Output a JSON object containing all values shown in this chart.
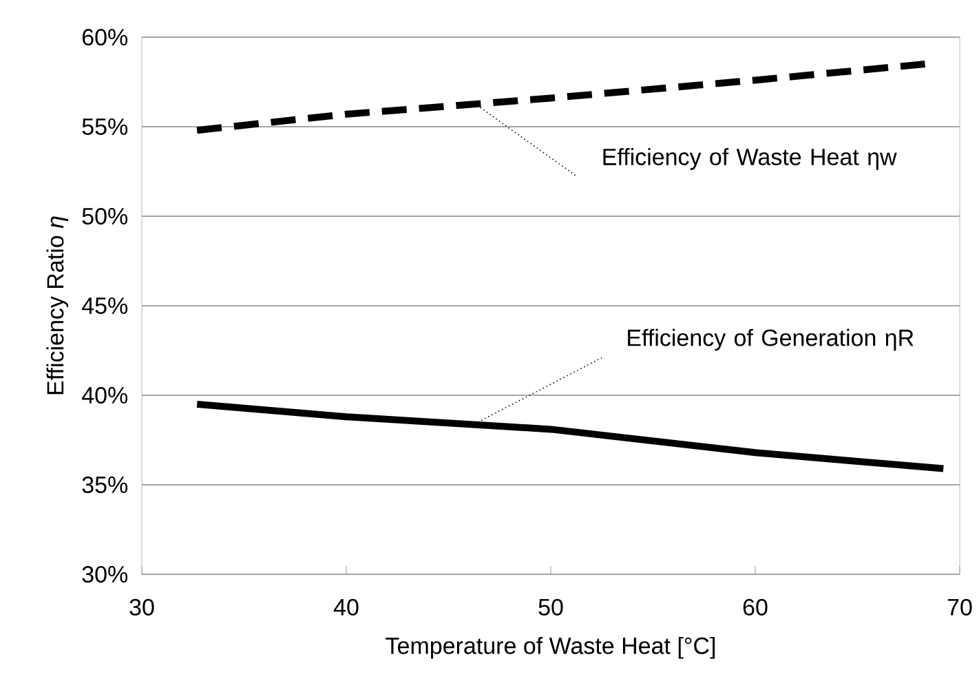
{
  "chart_data": {
    "type": "line",
    "xlabel": "Temperature of Waste Heat [°C]",
    "ylabel": "Efficiency Ratio *η*",
    "xlim": [
      30,
      70
    ],
    "xticks": [
      30,
      40,
      50,
      60,
      70
    ],
    "ylim": [
      30,
      60
    ],
    "yticks": [
      {
        "value": 30,
        "label": "30%"
      },
      {
        "value": 35,
        "label": "35%"
      },
      {
        "value": 40,
        "label": "40%"
      },
      {
        "value": 45,
        "label": "45%"
      },
      {
        "value": 50,
        "label": "50%"
      },
      {
        "value": 55,
        "label": "55%"
      },
      {
        "value": 60,
        "label": "60%"
      }
    ],
    "grid": "y",
    "series": [
      {
        "color": "#000000",
        "line_style": "dashed",
        "x": [
          32.7,
          40,
          50,
          60,
          68.3
        ],
        "values": [
          54.8,
          55.7,
          56.6,
          57.6,
          58.5
        ]
      },
      {
        "color": "#000000",
        "line_style": "solid",
        "x": [
          32.7,
          40,
          50,
          60,
          69.2
        ],
        "values": [
          39.5,
          38.8,
          38.1,
          36.8,
          35.9
        ]
      }
    ],
    "annotations": [
      {
        "text": "Efficiency of Waste Heat ηw",
        "x": 46.4,
        "y": 56.2
      },
      {
        "text": "Efficiency of Generation ηR",
        "x": 46.1,
        "y": 38.3
      }
    ]
  }
}
